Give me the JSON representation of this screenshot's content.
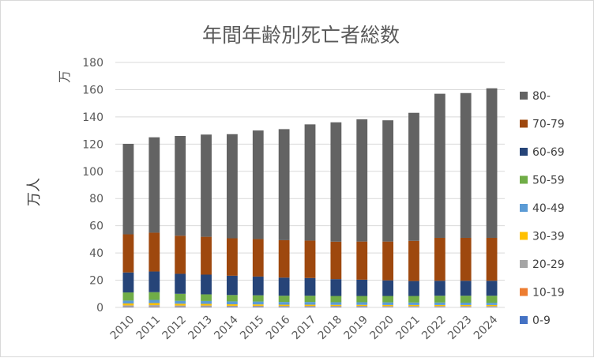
{
  "chart_data": {
    "type": "bar",
    "stacked": true,
    "title": "年間年齢別死亡者総数",
    "ylabel": "万人",
    "unit_label": "万",
    "xlabel": "",
    "ylim": [
      0,
      180
    ],
    "yticks": [
      0,
      20,
      40,
      60,
      80,
      100,
      120,
      140,
      160,
      180
    ],
    "grid": true,
    "legend_position": "right",
    "categories": [
      "2010",
      "2011",
      "2012",
      "2013",
      "2014",
      "2015",
      "2016",
      "2017",
      "2018",
      "2019",
      "2020",
      "2021",
      "2022",
      "2023",
      "2024"
    ],
    "series": [
      {
        "name": "0-9",
        "color": "#4472c4",
        "values": [
          0.4,
          0.4,
          0.4,
          0.4,
          0.3,
          0.3,
          0.3,
          0.3,
          0.3,
          0.3,
          0.2,
          0.2,
          0.2,
          0.2,
          0.2
        ]
      },
      {
        "name": "10-19",
        "color": "#ed7d31",
        "values": [
          0.2,
          0.3,
          0.2,
          0.2,
          0.2,
          0.2,
          0.2,
          0.2,
          0.2,
          0.2,
          0.2,
          0.2,
          0.2,
          0.2,
          0.2
        ]
      },
      {
        "name": "20-29",
        "color": "#a5a5a5",
        "values": [
          0.9,
          1.0,
          0.8,
          0.8,
          0.7,
          0.7,
          0.6,
          0.6,
          0.6,
          0.6,
          0.6,
          0.6,
          0.6,
          0.6,
          0.6
        ]
      },
      {
        "name": "30-39",
        "color": "#ffc000",
        "values": [
          1.4,
          1.5,
          1.3,
          1.2,
          1.1,
          1.0,
          0.9,
          0.9,
          0.8,
          0.8,
          0.8,
          0.8,
          0.8,
          0.8,
          0.8
        ]
      },
      {
        "name": "40-49",
        "color": "#5b9bd5",
        "values": [
          2.1,
          2.3,
          2.1,
          2.1,
          2.1,
          2.1,
          2.0,
          2.0,
          1.9,
          1.9,
          1.9,
          1.8,
          1.8,
          1.7,
          1.6
        ]
      },
      {
        "name": "50-59",
        "color": "#70ad47",
        "values": [
          6.0,
          5.7,
          5.2,
          4.9,
          4.7,
          4.6,
          4.6,
          4.6,
          4.6,
          4.6,
          4.7,
          4.8,
          5.0,
          5.1,
          5.2
        ]
      },
      {
        "name": "60-69",
        "color": "#264478",
        "values": [
          14.7,
          15.2,
          14.7,
          14.5,
          14.2,
          13.8,
          13.3,
          13.0,
          12.4,
          12.0,
          11.5,
          11.0,
          11.0,
          11.0,
          11.0
        ]
      },
      {
        "name": "70-79",
        "color": "#9e480e",
        "values": [
          28.0,
          28.5,
          28.0,
          27.8,
          27.5,
          27.5,
          27.5,
          27.5,
          27.5,
          28.0,
          28.5,
          29.5,
          31.5,
          31.5,
          31.5
        ]
      },
      {
        "name": "80-",
        "color": "#636363",
        "values": [
          66.5,
          70.1,
          73.3,
          75.1,
          76.5,
          79.8,
          81.6,
          85.4,
          87.7,
          89.8,
          89.1,
          94.1,
          105.9,
          106.4,
          109.9
        ]
      }
    ]
  }
}
